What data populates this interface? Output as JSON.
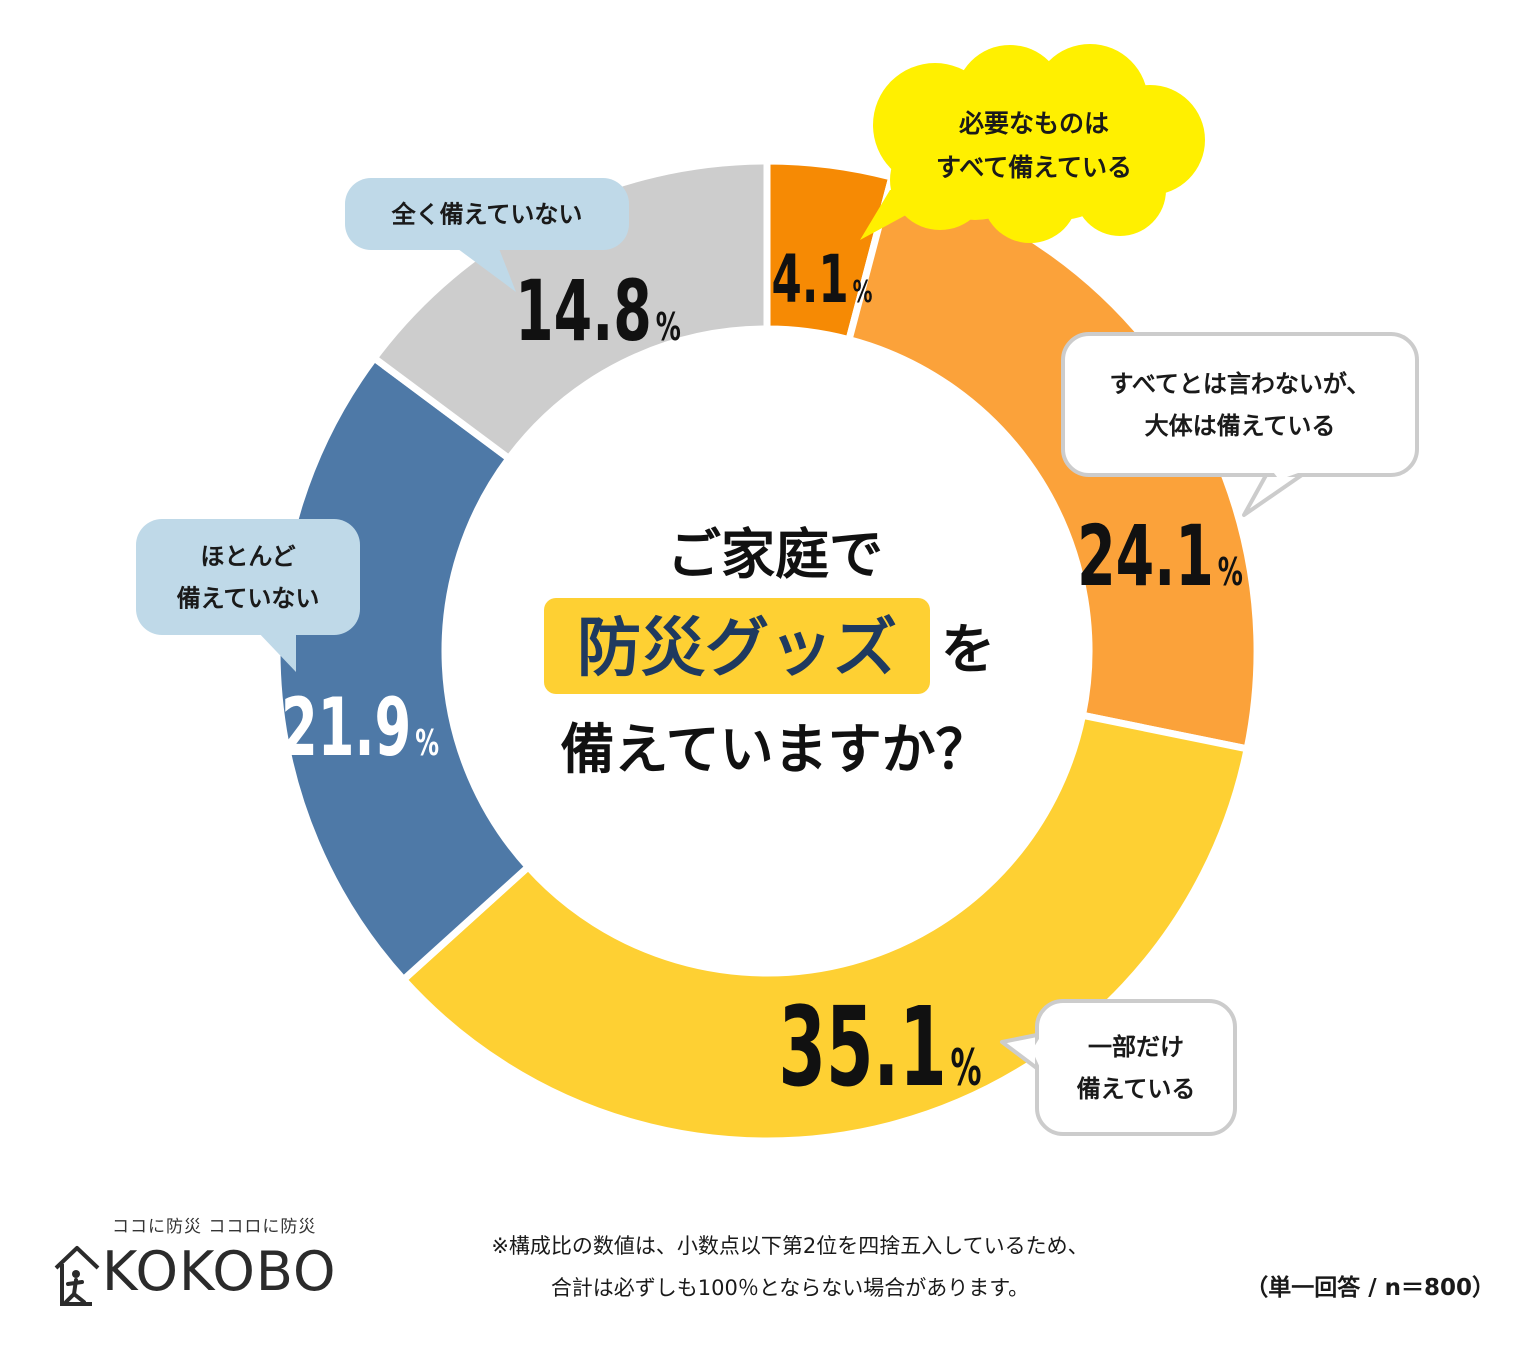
{
  "chart_data": {
    "type": "pie",
    "donut": true,
    "title_lines": [
      "ご家庭で",
      "防災グッズ",
      "を",
      "備えていますか？"
    ],
    "percent_sign": "%",
    "slices": [
      {
        "label_lines": [
          "必要なものは",
          "すべて備えている"
        ],
        "value": 4.1,
        "value_text": "4.1",
        "color": "#f68a04"
      },
      {
        "label_lines": [
          "すべてとは言わないが、",
          "大体は備えている"
        ],
        "value": 24.1,
        "value_text": "24.1",
        "color": "#fba23a"
      },
      {
        "label_lines": [
          "一部だけ",
          "備えている"
        ],
        "value": 35.1,
        "value_text": "35.1",
        "color": "#fed033"
      },
      {
        "label_lines": [
          "ほとんど",
          "備えていない"
        ],
        "value": 21.9,
        "value_text": "21.9",
        "color": "#4e79a7"
      },
      {
        "label_lines": [
          "全く備えていない"
        ],
        "value": 14.8,
        "value_text": "14.8",
        "color": "#cdcdcd"
      }
    ]
  },
  "colors": {
    "highlight_bg": "#fed033",
    "highlight_text": "#1f3a5f",
    "bubble_blue": "#bfd9e8",
    "bubble_yellow": "#fff000",
    "bubble_white": "#ffffff",
    "bubble_border": "#cccccc"
  },
  "footer": {
    "note_lines": [
      "※構成比の数値は、小数点以下第2位を四捨五入しているため、",
      "合計は必ずしも100％とならない場合があります。"
    ],
    "sample": "（単一回答 / n＝800）"
  },
  "logo": {
    "tagline": "ココに防災  ココロに防災",
    "wordmark": "KOKOBO"
  }
}
